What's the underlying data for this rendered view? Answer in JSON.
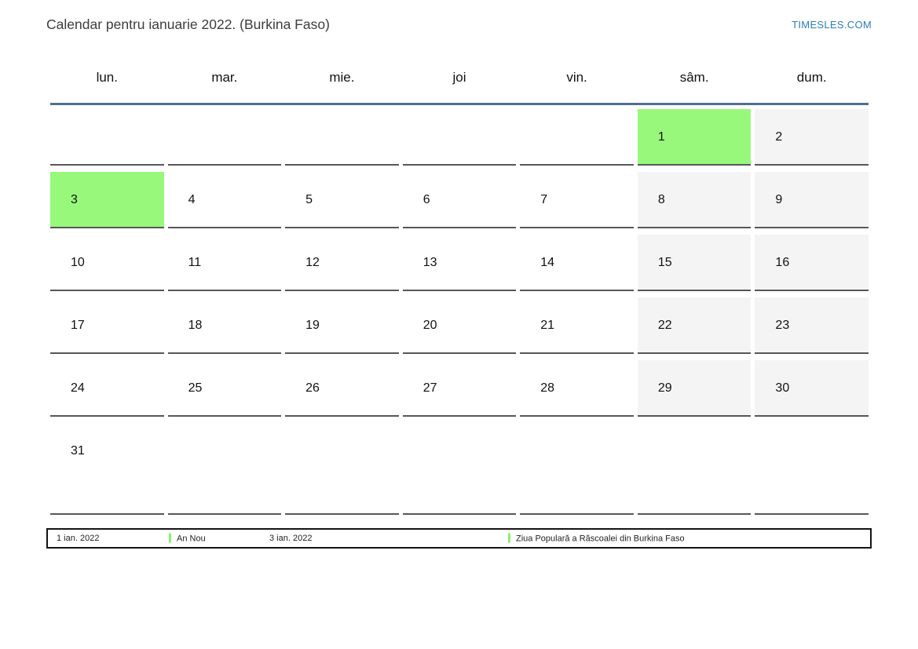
{
  "page": {
    "title": "Calendar pentru ianuarie 2022. (Burkina Faso)",
    "site_link": "TIMESLES.COM"
  },
  "calendar": {
    "weekdays": [
      "lun.",
      "mar.",
      "mie.",
      "joi",
      "vin.",
      "sâm.",
      "dum."
    ],
    "weeks": [
      [
        "",
        "",
        "",
        "",
        "",
        "1",
        "2"
      ],
      [
        "3",
        "4",
        "5",
        "6",
        "7",
        "8",
        "9"
      ],
      [
        "10",
        "11",
        "12",
        "13",
        "14",
        "15",
        "16"
      ],
      [
        "17",
        "18",
        "19",
        "20",
        "21",
        "22",
        "23"
      ],
      [
        "24",
        "25",
        "26",
        "27",
        "28",
        "29",
        "30"
      ],
      [
        "31",
        "",
        "",
        "",
        "",
        "",
        ""
      ]
    ],
    "holiday_days": [
      "1",
      "3"
    ]
  },
  "legend": {
    "entries": [
      {
        "date": "1 ian. 2022",
        "name": "An Nou"
      },
      {
        "date": "3 ian. 2022",
        "name": "Ziua Populară a Răscoalei din Burkina Faso"
      }
    ]
  },
  "colors": {
    "holiday_green": "#98f87c",
    "weekend_gray": "#f4f4f4",
    "header_line_blue": "#50708f",
    "cell_border": "#57575a",
    "link_blue": "#2e7cb8",
    "legend_marker_green": "#8cee6e"
  }
}
